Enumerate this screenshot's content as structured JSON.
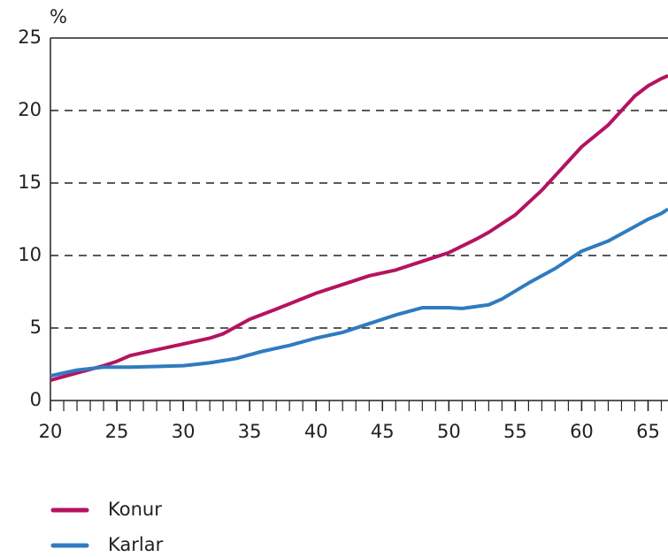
{
  "chart_data": {
    "type": "line",
    "y_label": "%",
    "series": [
      {
        "name": "Konur",
        "color": "#b5135f",
        "x": [
          20,
          22,
          24,
          25,
          26,
          28,
          30,
          32,
          33,
          35,
          37,
          40,
          42,
          44,
          46,
          48,
          50,
          52,
          53,
          55,
          57,
          60,
          62,
          64,
          65,
          66,
          66.5
        ],
        "values": [
          1.4,
          1.9,
          2.4,
          2.7,
          3.1,
          3.5,
          3.9,
          4.3,
          4.6,
          5.6,
          6.3,
          7.4,
          8.0,
          8.6,
          9.0,
          9.6,
          10.2,
          11.1,
          11.6,
          12.8,
          14.5,
          17.5,
          19.0,
          21.0,
          21.7,
          22.2,
          22.4
        ]
      },
      {
        "name": "Karlar",
        "color": "#2f7bbf",
        "x": [
          20,
          22,
          24,
          26,
          28,
          30,
          32,
          34,
          36,
          38,
          40,
          42,
          44,
          46,
          48,
          50,
          51,
          53,
          54,
          56,
          58,
          60,
          62,
          64,
          65,
          66,
          66.5
        ],
        "values": [
          1.7,
          2.1,
          2.3,
          2.3,
          2.35,
          2.4,
          2.6,
          2.9,
          3.4,
          3.8,
          4.3,
          4.7,
          5.3,
          5.9,
          6.4,
          6.4,
          6.35,
          6.6,
          7.0,
          8.1,
          9.1,
          10.3,
          11.0,
          12.0,
          12.5,
          12.9,
          13.2
        ]
      }
    ],
    "xlim": [
      20,
      66.5
    ],
    "ylim": [
      0,
      25
    ],
    "xticks": [
      20,
      25,
      30,
      35,
      40,
      45,
      50,
      55,
      60,
      65
    ],
    "xminorticks": [
      20,
      21,
      22,
      23,
      24,
      25,
      26,
      27,
      28,
      29,
      30,
      31,
      32,
      33,
      34,
      35,
      36,
      37,
      38,
      39,
      40,
      41,
      42,
      43,
      44,
      45,
      46,
      47,
      48,
      49,
      50,
      51,
      52,
      53,
      54,
      55,
      56,
      57,
      58,
      59,
      60,
      61,
      62,
      63,
      64,
      65,
      66
    ],
    "yticks": [
      0,
      5,
      10,
      15,
      20,
      25
    ],
    "grid": true
  }
}
